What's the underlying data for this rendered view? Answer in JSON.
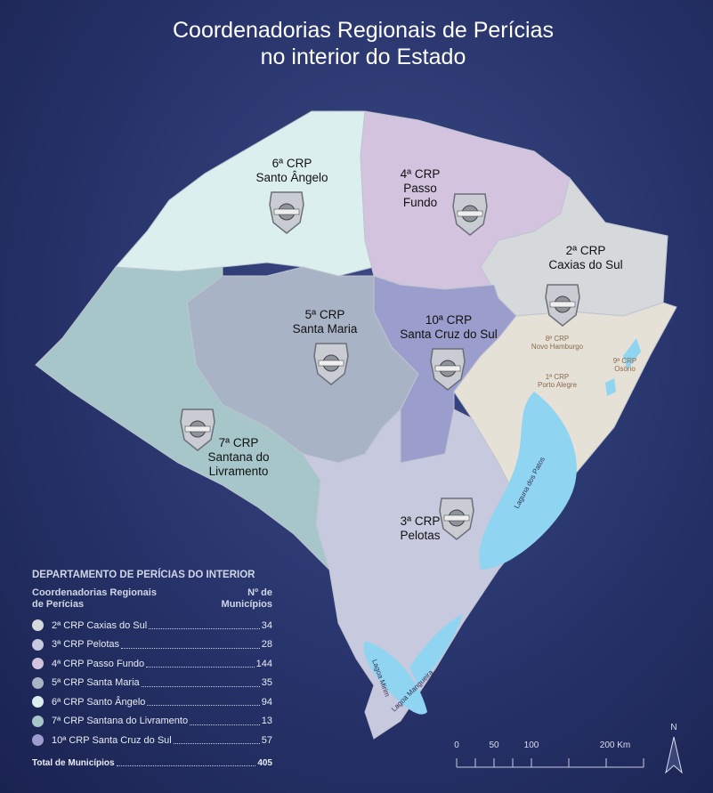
{
  "title": [
    "Coordenadorias Regionais de Perícias",
    "no interior do Estado"
  ],
  "regions": [
    {
      "label": [
        "6ª CRP",
        "Santo Ângelo"
      ]
    },
    {
      "label": [
        "4ª CRP",
        "Passo",
        "Fundo"
      ]
    },
    {
      "label": [
        "2ª CRP",
        "Caxias do Sul"
      ]
    },
    {
      "label": [
        "5ª CRP",
        "Santa Maria"
      ]
    },
    {
      "label": [
        "10ª CRP",
        "Santa Cruz do Sul"
      ]
    },
    {
      "label": [
        "7ª CRP",
        "Santana do",
        "Livramento"
      ]
    },
    {
      "label": [
        "3ª CRP",
        "Pelotas"
      ]
    }
  ],
  "small_labels": {
    "crp8": [
      "8ª CRP",
      "Novo Hamburgo"
    ],
    "crp9": [
      "9ª CRP",
      "Osório"
    ],
    "crp1": [
      "1ª CRP",
      "Porto Alegre"
    ],
    "lagoon1": "Laguna dos Patos",
    "lagoon2": "Lagoa Mirim",
    "lagoon3": "Lagoa Mangueira"
  },
  "legend": {
    "heading": "DEPARTAMENTO DE PERÍCIAS DO INTERIOR",
    "col1": [
      "Coordenadorias Regionais",
      "de Perícias"
    ],
    "col2": [
      "Nº de",
      "Municípios"
    ],
    "rows": [
      {
        "name": "2ª CRP Caxias do Sul",
        "count": 34,
        "color": "#d5d9dc"
      },
      {
        "name": "3ª CRP Pelotas",
        "count": 28,
        "color": "#c7c9de"
      },
      {
        "name": "4ª CRP Passo Fundo",
        "count": 144,
        "color": "#d3c3df"
      },
      {
        "name": "5ª CRP Santa Maria",
        "count": 35,
        "color": "#a8b3c6"
      },
      {
        "name": "6ª CRP Santo Ângelo",
        "count": 94,
        "color": "#dcefef"
      },
      {
        "name": "7ª CRP Santana do Livramento",
        "count": 13,
        "color": "#a6c6ca"
      },
      {
        "name": "10ª CRP Santa Cruz do Sul",
        "count": 57,
        "color": "#9b9dcc"
      }
    ],
    "total_label": "Total de Municípios",
    "total": 405
  },
  "scale": [
    "0",
    "50",
    "100",
    "200 Km"
  ],
  "north": "N"
}
